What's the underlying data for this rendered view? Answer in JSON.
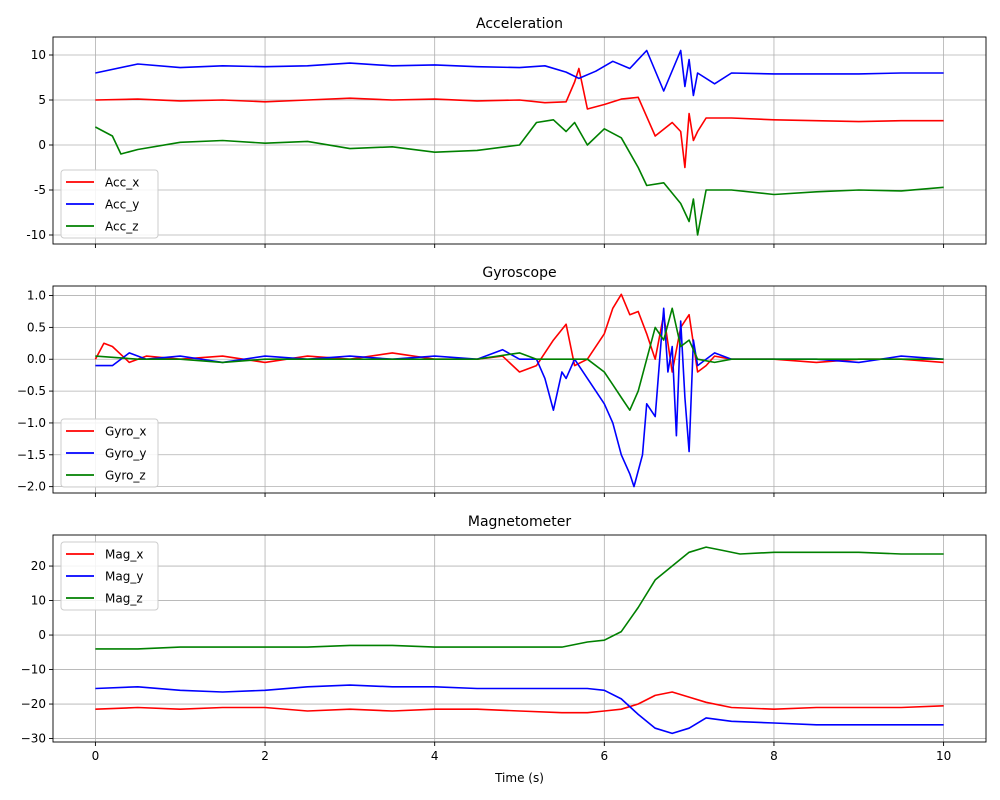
{
  "chart_data": [
    {
      "type": "line",
      "title": "Acceleration",
      "xlabel": "",
      "ylabel": "",
      "xlim": [
        -0.5,
        10.5
      ],
      "ylim": [
        -11,
        12
      ],
      "xticks": [
        0,
        2,
        4,
        6,
        8,
        10
      ],
      "yticks": [
        -10,
        -5,
        0,
        5,
        10
      ],
      "grid": true,
      "legend_position": "bottom-left",
      "colors": {
        "x": "#ff0000",
        "y": "#0000ff",
        "z": "#008000"
      },
      "series": [
        {
          "name": "Acc_x",
          "color": "#ff0000",
          "x": [
            0,
            0.5,
            1,
            1.5,
            2,
            2.5,
            3,
            3.5,
            4,
            4.5,
            5,
            5.3,
            5.55,
            5.65,
            5.7,
            5.8,
            6,
            6.2,
            6.4,
            6.6,
            6.8,
            6.9,
            6.95,
            7.0,
            7.05,
            7.1,
            7.2,
            7.5,
            8,
            8.5,
            9,
            9.5,
            10
          ],
          "y": [
            5.0,
            5.1,
            4.9,
            5.0,
            4.8,
            5.0,
            5.2,
            5.0,
            5.1,
            4.9,
            5.0,
            4.7,
            4.8,
            7.0,
            8.5,
            4.0,
            4.5,
            5.1,
            5.3,
            1.0,
            2.5,
            1.5,
            -2.5,
            3.5,
            0.5,
            1.5,
            3.0,
            3.0,
            2.8,
            2.7,
            2.6,
            2.7,
            2.7
          ]
        },
        {
          "name": "Acc_y",
          "color": "#0000ff",
          "x": [
            0,
            0.5,
            1,
            1.5,
            2,
            2.5,
            3,
            3.5,
            4,
            4.5,
            5,
            5.3,
            5.55,
            5.7,
            5.9,
            6.1,
            6.3,
            6.5,
            6.7,
            6.9,
            6.95,
            7.0,
            7.05,
            7.1,
            7.3,
            7.5,
            8,
            8.5,
            9,
            9.5,
            10
          ],
          "y": [
            8.0,
            9.0,
            8.6,
            8.8,
            8.7,
            8.8,
            9.1,
            8.8,
            8.9,
            8.7,
            8.6,
            8.8,
            8.1,
            7.4,
            8.2,
            9.3,
            8.5,
            10.5,
            6.0,
            10.5,
            6.5,
            9.5,
            5.5,
            8.0,
            6.8,
            8.0,
            7.9,
            7.9,
            7.9,
            8.0,
            8.0
          ]
        },
        {
          "name": "Acc_z",
          "color": "#008000",
          "x": [
            0,
            0.2,
            0.3,
            0.5,
            1,
            1.5,
            2,
            2.5,
            3,
            3.5,
            4,
            4.5,
            5,
            5.2,
            5.4,
            5.55,
            5.65,
            5.8,
            6,
            6.2,
            6.4,
            6.5,
            6.7,
            6.9,
            7.0,
            7.05,
            7.1,
            7.2,
            7.5,
            8,
            8.5,
            9,
            9.5,
            10
          ],
          "y": [
            2.0,
            1.0,
            -1.0,
            -0.5,
            0.3,
            0.5,
            0.2,
            0.4,
            -0.4,
            -0.2,
            -0.8,
            -0.6,
            0.0,
            2.5,
            2.8,
            1.5,
            2.5,
            0.0,
            1.8,
            0.8,
            -2.5,
            -4.5,
            -4.2,
            -6.5,
            -8.5,
            -6.0,
            -10.0,
            -5.0,
            -5.0,
            -5.5,
            -5.2,
            -5.0,
            -5.1,
            -4.7
          ]
        }
      ]
    },
    {
      "type": "line",
      "title": "Gyroscope",
      "xlabel": "",
      "ylabel": "",
      "xlim": [
        -0.5,
        10.5
      ],
      "ylim": [
        -2.1,
        1.15
      ],
      "xticks": [
        0,
        2,
        4,
        6,
        8,
        10
      ],
      "yticks": [
        -2.0,
        -1.5,
        -1.0,
        -0.5,
        0.0,
        0.5,
        1.0
      ],
      "ytick_labels": [
        "−2.0",
        "−1.5",
        "−1.0",
        "−0.5",
        "0.0",
        "0.5",
        "1.0"
      ],
      "grid": true,
      "legend_position": "bottom-left",
      "series": [
        {
          "name": "Gyro_x",
          "color": "#ff0000",
          "x": [
            0,
            0.1,
            0.2,
            0.4,
            0.6,
            1,
            1.5,
            2,
            2.5,
            3,
            3.5,
            4,
            4.5,
            4.8,
            5,
            5.2,
            5.4,
            5.55,
            5.65,
            5.8,
            6,
            6.1,
            6.2,
            6.3,
            6.4,
            6.5,
            6.6,
            6.7,
            6.8,
            6.9,
            7.0,
            7.1,
            7.2,
            7.3,
            7.5,
            8,
            8.5,
            9,
            9.5,
            10
          ],
          "y": [
            0.0,
            0.25,
            0.2,
            -0.05,
            0.05,
            0.0,
            0.05,
            -0.05,
            0.05,
            0.0,
            0.1,
            0.0,
            0.0,
            0.05,
            -0.2,
            -0.1,
            0.3,
            0.55,
            -0.1,
            0.0,
            0.4,
            0.8,
            1.02,
            0.7,
            0.75,
            0.4,
            0.0,
            0.7,
            -0.2,
            0.5,
            0.7,
            -0.2,
            -0.1,
            0.05,
            0.0,
            0.0,
            -0.05,
            0.0,
            0.0,
            -0.05
          ]
        },
        {
          "name": "Gyro_y",
          "color": "#0000ff",
          "x": [
            0,
            0.2,
            0.4,
            0.6,
            1,
            1.5,
            2,
            2.5,
            3,
            3.5,
            4,
            4.5,
            4.8,
            5,
            5.2,
            5.3,
            5.4,
            5.5,
            5.55,
            5.65,
            5.8,
            6.0,
            6.1,
            6.2,
            6.3,
            6.35,
            6.45,
            6.5,
            6.6,
            6.7,
            6.75,
            6.8,
            6.85,
            6.9,
            6.95,
            7.0,
            7.05,
            7.1,
            7.3,
            7.5,
            8,
            8.5,
            9,
            9.5,
            10
          ],
          "y": [
            -0.1,
            -0.1,
            0.1,
            0.0,
            0.05,
            -0.05,
            0.05,
            0.0,
            0.05,
            0.0,
            0.05,
            0.0,
            0.15,
            0.0,
            0.0,
            -0.3,
            -0.8,
            -0.2,
            -0.3,
            0.0,
            -0.3,
            -0.7,
            -1.0,
            -1.5,
            -1.8,
            -2.0,
            -1.5,
            -0.7,
            -0.9,
            0.8,
            -0.2,
            0.2,
            -1.2,
            0.6,
            -0.6,
            -1.45,
            0.3,
            -0.1,
            0.1,
            0.0,
            0.0,
            0.0,
            -0.05,
            0.05,
            0.0
          ]
        },
        {
          "name": "Gyro_z",
          "color": "#008000",
          "x": [
            0,
            0.5,
            1,
            1.5,
            2,
            2.5,
            3,
            3.5,
            4,
            4.5,
            5,
            5.2,
            5.4,
            5.6,
            5.8,
            6.0,
            6.1,
            6.2,
            6.3,
            6.4,
            6.5,
            6.6,
            6.7,
            6.8,
            6.9,
            7.0,
            7.1,
            7.3,
            7.5,
            8,
            8.5,
            9,
            9.5,
            10
          ],
          "y": [
            0.05,
            0.0,
            0.0,
            -0.05,
            0.0,
            0.0,
            0.0,
            0.0,
            0.0,
            0.0,
            0.1,
            0.0,
            0.0,
            0.0,
            0.0,
            -0.2,
            -0.4,
            -0.6,
            -0.8,
            -0.5,
            0.0,
            0.5,
            0.3,
            0.8,
            0.2,
            0.3,
            0.0,
            -0.05,
            0.0,
            0.0,
            0.0,
            0.0,
            0.0,
            0.0
          ]
        }
      ]
    },
    {
      "type": "line",
      "title": "Magnetometer",
      "xlabel": "Time (s)",
      "ylabel": "",
      "xlim": [
        -0.5,
        10.5
      ],
      "ylim": [
        -31,
        29
      ],
      "xticks": [
        0,
        2,
        4,
        6,
        8,
        10
      ],
      "yticks": [
        -30,
        -20,
        -10,
        0,
        10,
        20
      ],
      "ytick_labels": [
        "−30",
        "−20",
        "−10",
        "0",
        "10",
        "20"
      ],
      "grid": true,
      "legend_position": "top-left",
      "series": [
        {
          "name": "Mag_x",
          "color": "#ff0000",
          "x": [
            0,
            0.5,
            1,
            1.5,
            2,
            2.5,
            3,
            3.5,
            4,
            4.5,
            5,
            5.5,
            5.8,
            6.0,
            6.2,
            6.4,
            6.6,
            6.8,
            7.0,
            7.2,
            7.5,
            8,
            8.5,
            9,
            9.5,
            10
          ],
          "y": [
            -21.5,
            -21.0,
            -21.5,
            -21.0,
            -21.0,
            -22.0,
            -21.5,
            -22.0,
            -21.5,
            -21.5,
            -22.0,
            -22.5,
            -22.5,
            -22.0,
            -21.5,
            -20.0,
            -17.5,
            -16.5,
            -18.0,
            -19.5,
            -21.0,
            -21.5,
            -21.0,
            -21.0,
            -21.0,
            -20.5
          ]
        },
        {
          "name": "Mag_y",
          "color": "#0000ff",
          "x": [
            0,
            0.5,
            1,
            1.5,
            2,
            2.5,
            3,
            3.5,
            4,
            4.5,
            5,
            5.5,
            5.8,
            6.0,
            6.2,
            6.4,
            6.6,
            6.8,
            7.0,
            7.2,
            7.5,
            8,
            8.5,
            9,
            9.5,
            10
          ],
          "y": [
            -15.5,
            -15.0,
            -16.0,
            -16.5,
            -16.0,
            -15.0,
            -14.5,
            -15.0,
            -15.0,
            -15.5,
            -15.5,
            -15.5,
            -15.5,
            -16.0,
            -18.5,
            -23.0,
            -27.0,
            -28.5,
            -27.0,
            -24.0,
            -25.0,
            -25.5,
            -26.0,
            -26.0,
            -26.0,
            -26.0
          ]
        },
        {
          "name": "Mag_z",
          "color": "#008000",
          "x": [
            0,
            0.5,
            1,
            1.5,
            2,
            2.5,
            3,
            3.5,
            4,
            4.5,
            5,
            5.5,
            5.8,
            6.0,
            6.2,
            6.4,
            6.6,
            6.8,
            7.0,
            7.2,
            7.4,
            7.6,
            8,
            8.5,
            9,
            9.5,
            10
          ],
          "y": [
            -4.0,
            -4.0,
            -3.5,
            -3.5,
            -3.5,
            -3.5,
            -3.0,
            -3.0,
            -3.5,
            -3.5,
            -3.5,
            -3.5,
            -2.0,
            -1.5,
            1.0,
            8.0,
            16.0,
            20.0,
            24.0,
            25.5,
            24.5,
            23.5,
            24.0,
            24.0,
            24.0,
            23.5,
            23.5
          ]
        }
      ]
    }
  ]
}
